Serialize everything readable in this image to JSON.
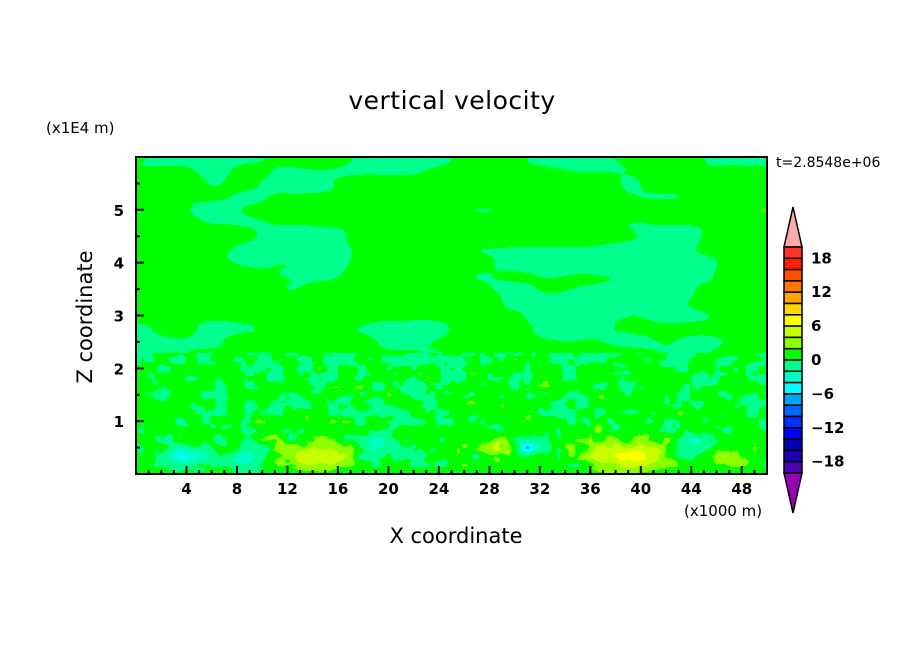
{
  "chart_data": {
    "type": "heatmap",
    "title": "vertical velocity",
    "xlabel": "X coordinate",
    "ylabel": "Z coordinate",
    "x_unit": "(x1000 m)",
    "y_unit": "(x1E4 m)",
    "time_label": "t=2.8548e+06",
    "xlim": [
      0,
      50
    ],
    "ylim": [
      0,
      6
    ],
    "x_ticks": [
      4,
      8,
      12,
      16,
      20,
      24,
      28,
      32,
      36,
      40,
      44,
      48
    ],
    "y_ticks": [
      1,
      2,
      3,
      4,
      5
    ],
    "colorbar": {
      "levels": [
        -18,
        -16,
        -14,
        -12,
        -10,
        -8,
        -6,
        -4,
        -2,
        0,
        2,
        4,
        6,
        8,
        10,
        12,
        14,
        16,
        18
      ],
      "labels": [
        "18",
        "12",
        "6",
        "0",
        "-6",
        "-12",
        "-18"
      ],
      "colors_top_to_bottom": [
        "#ff3232",
        "#ff2000",
        "#ff5000",
        "#ff7800",
        "#ffa500",
        "#ffd700",
        "#ffff00",
        "#c8ff00",
        "#8cff00",
        "#00ff00",
        "#00ff8c",
        "#00ffc8",
        "#00ffff",
        "#00a5ff",
        "#0064ff",
        "#0032ff",
        "#0000ff",
        "#0000b4",
        "#1e00b4",
        "#5000b4"
      ],
      "over_color": "#ffaaaa",
      "under_color": "#9600b4"
    }
  }
}
